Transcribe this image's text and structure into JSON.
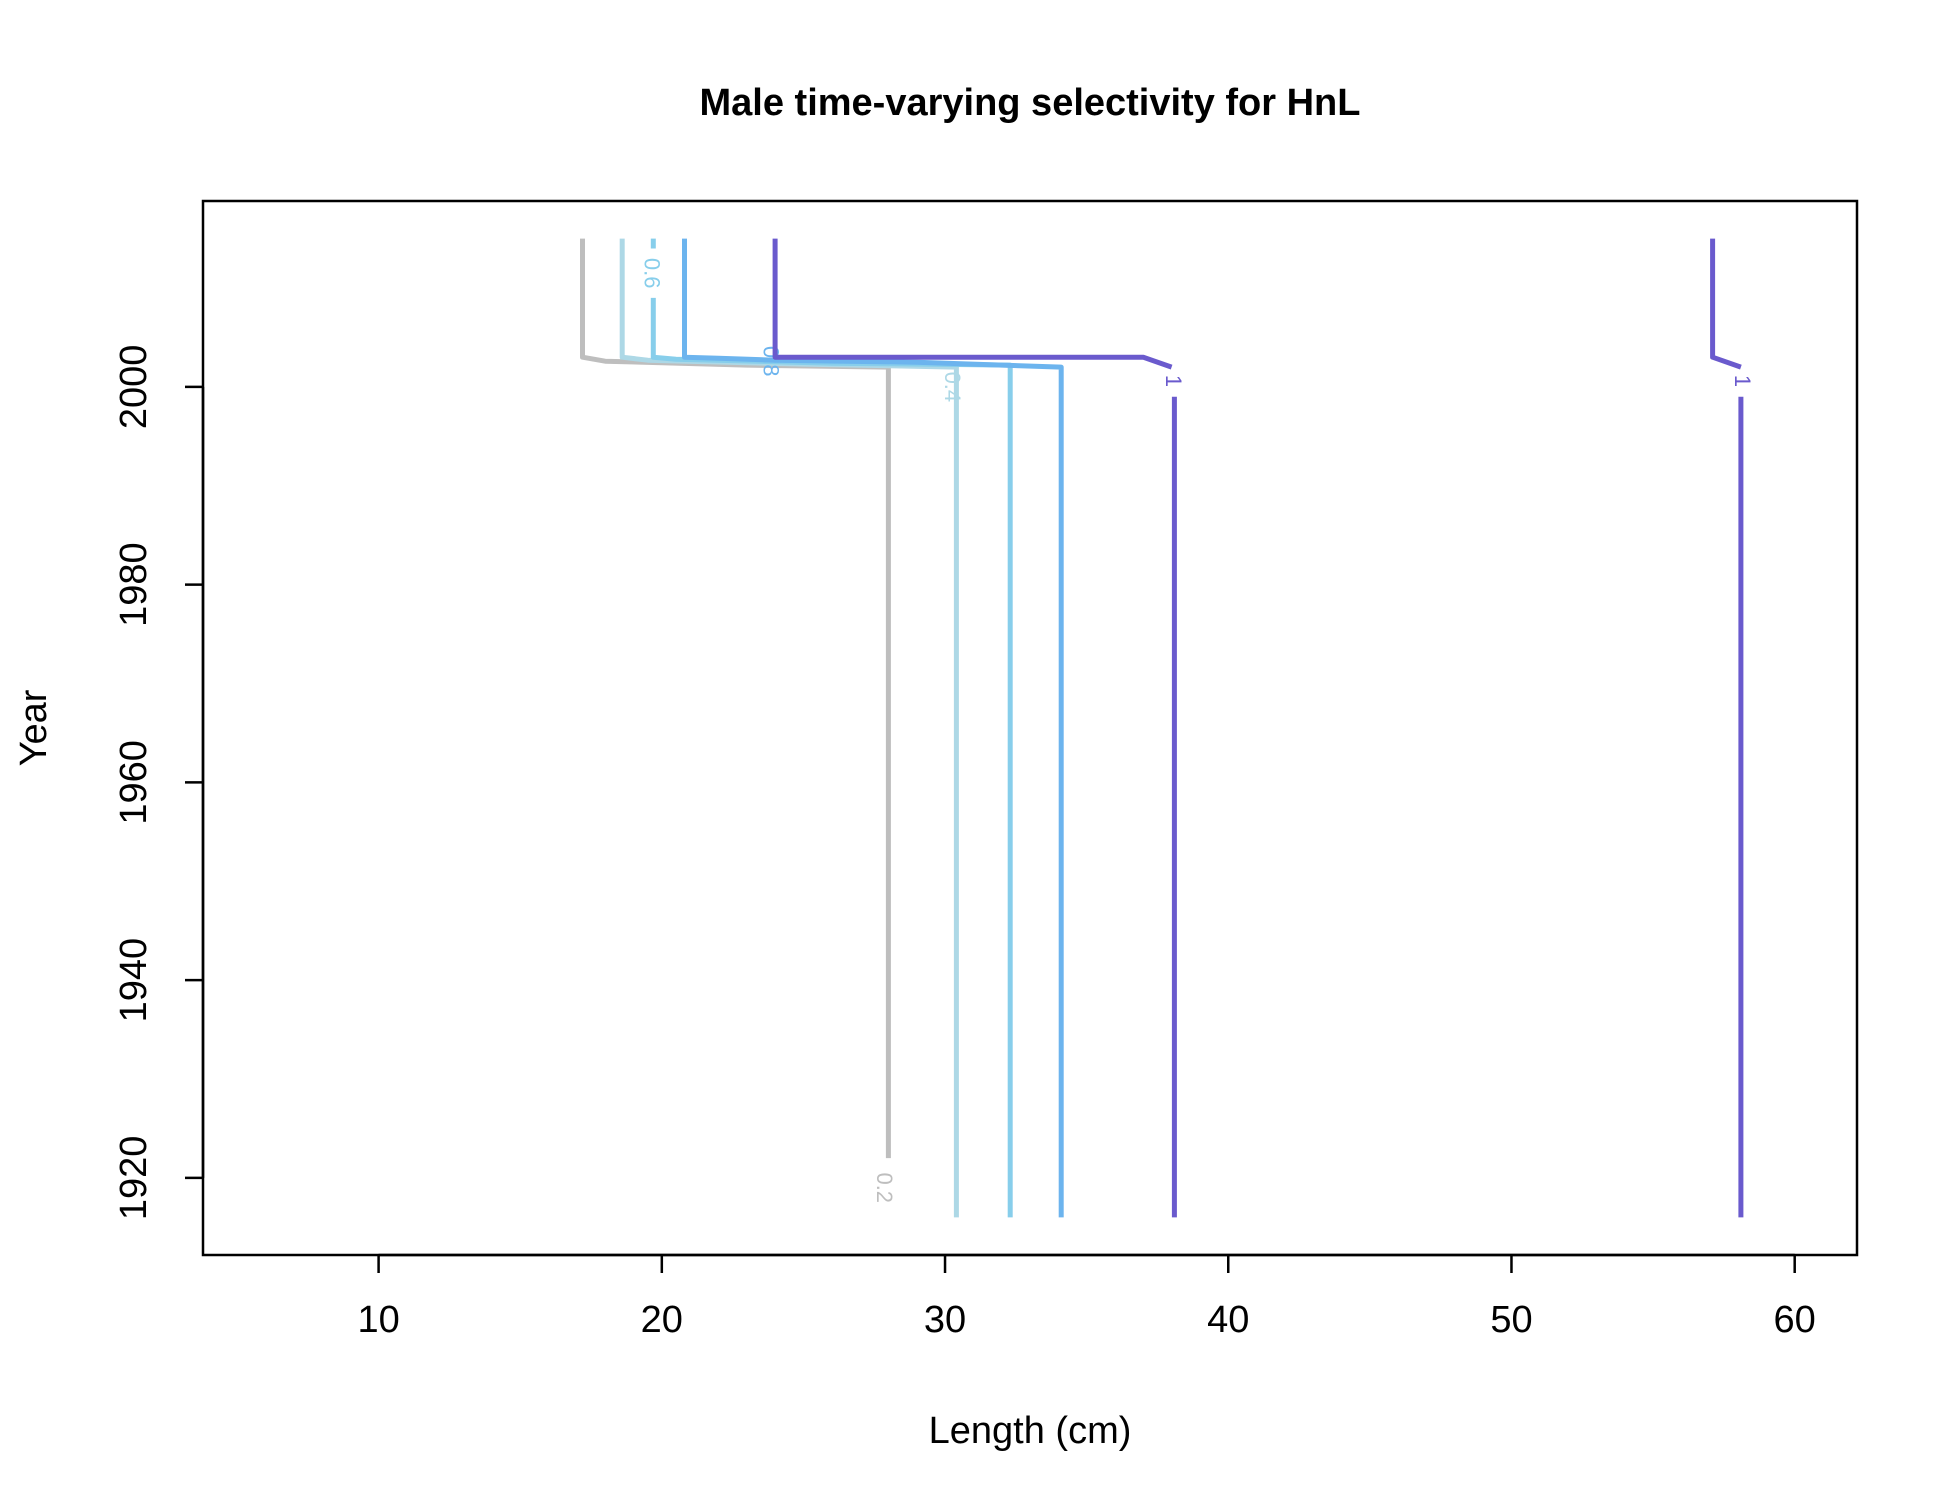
{
  "chart_data": {
    "type": "line",
    "subtype": "contour",
    "title": "Male time-varying selectivity for HnL",
    "xlabel": "Length (cm)",
    "ylabel": "Year",
    "xlim": [
      3.8,
      62.2
    ],
    "ylim": [
      1912.2,
      2018.8
    ],
    "xticks": [
      10,
      20,
      30,
      40,
      50,
      60
    ],
    "yticks": [
      1920,
      1940,
      1960,
      1980,
      2000
    ],
    "xtick_labels": [
      "10",
      "20",
      "30",
      "40",
      "50",
      "60"
    ],
    "ytick_labels": [
      "1920",
      "1940",
      "1960",
      "1980",
      "2000"
    ],
    "grid": false,
    "legend": "none",
    "series": [
      {
        "level": "0.2",
        "color": "#bebebe",
        "points": [
          [
            17.2,
            2015
          ],
          [
            17.2,
            2003
          ],
          [
            18.0,
            2002.6
          ],
          [
            23.0,
            2002.2
          ],
          [
            28.0,
            2002
          ],
          [
            28.0,
            1922
          ]
        ],
        "label": {
          "text": "0.2",
          "x": 27.8,
          "y": 1919
        }
      },
      {
        "level": "0.4",
        "color": "#add8e6",
        "points": [
          [
            18.6,
            2015
          ],
          [
            18.6,
            2003
          ],
          [
            19.5,
            2002.7
          ],
          [
            25.0,
            2002.3
          ],
          [
            30.4,
            2002
          ],
          [
            30.4,
            1997
          ]
        ],
        "label": {
          "text": "0.4",
          "x": 30.2,
          "y": 2000
        }
      },
      {
        "level": "0.4",
        "color": "#add8e6",
        "points": [
          [
            30.4,
            1997
          ],
          [
            30.4,
            1916
          ]
        ],
        "label": null
      },
      {
        "level": "0.6",
        "color": "#87ceeb",
        "points": [
          [
            19.7,
            2015
          ],
          [
            19.7,
            2014
          ]
        ],
        "label": {
          "text": "0.6",
          "x": 19.6,
          "y": 2011.5
        }
      },
      {
        "level": "0.6",
        "color": "#87ceeb",
        "points": [
          [
            19.7,
            2009
          ],
          [
            19.7,
            2003
          ],
          [
            20.5,
            2002.8
          ],
          [
            26.0,
            2002.4
          ],
          [
            32.3,
            2002.2
          ],
          [
            32.3,
            1916
          ]
        ],
        "label": null
      },
      {
        "level": "0.8",
        "color": "#6cb4ee",
        "points": [
          [
            20.8,
            2015
          ],
          [
            20.8,
            2003
          ],
          [
            22.0,
            2002.9
          ],
          [
            24.0,
            2002.7
          ],
          [
            29.0,
            2002.5
          ],
          [
            34.1,
            2002
          ],
          [
            34.1,
            1916
          ]
        ],
        "label": {
          "text": "0.8",
          "x": 23.8,
          "y": 2002.6
        }
      },
      {
        "level": "1",
        "color": "#6a5acd",
        "points": [
          [
            24.0,
            2015
          ],
          [
            24.0,
            2003
          ],
          [
            37.0,
            2003
          ],
          [
            38.0,
            2002
          ]
        ],
        "label": {
          "text": "1",
          "x": 38.0,
          "y": 2000.6
        }
      },
      {
        "level": "1",
        "color": "#6a5acd",
        "points": [
          [
            38.1,
            1999
          ],
          [
            38.1,
            1916
          ]
        ],
        "label": null
      },
      {
        "level": "1",
        "color": "#6a5acd",
        "points": [
          [
            57.1,
            2015
          ],
          [
            57.1,
            2003
          ],
          [
            58.1,
            2002
          ]
        ],
        "label": {
          "text": "1",
          "x": 58.1,
          "y": 2000.6
        }
      },
      {
        "level": "1",
        "color": "#6a5acd",
        "points": [
          [
            58.1,
            1999
          ],
          [
            58.1,
            1916
          ]
        ],
        "label": null
      }
    ]
  }
}
